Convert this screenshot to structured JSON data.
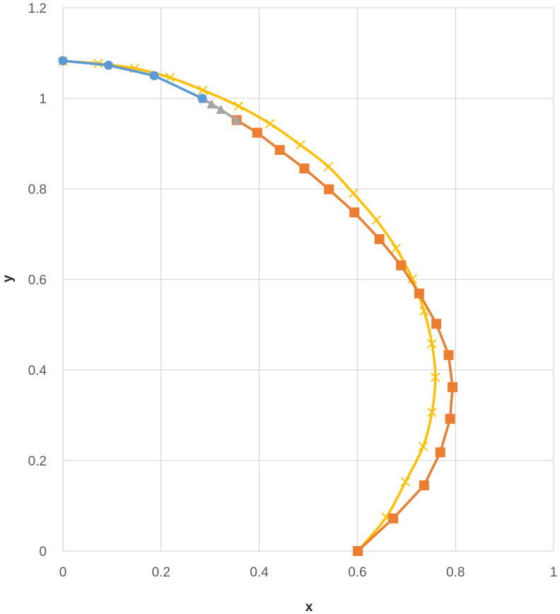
{
  "chart_data": {
    "type": "scatter",
    "title": "",
    "xlabel": "x",
    "ylabel": "y",
    "xlim": [
      0,
      1
    ],
    "ylim": [
      0,
      1.2
    ],
    "x_ticks": [
      "0",
      "0.2",
      "0.4",
      "0.6",
      "0.8",
      "1"
    ],
    "y_ticks": [
      "0",
      "0.2",
      "0.4",
      "0.6",
      "0.8",
      "1",
      "1.2"
    ],
    "x_tick_values": [
      0,
      0.2,
      0.4,
      0.6,
      0.8,
      1
    ],
    "y_tick_values": [
      0,
      0.2,
      0.4,
      0.6,
      0.8,
      1,
      1.2
    ],
    "grid": true,
    "legend": "none",
    "series": [
      {
        "color": "#FFC000",
        "marker": "x",
        "smooth": true,
        "points": [
          [
            0,
            1.082
          ],
          [
            0.072,
            1.077
          ],
          [
            0.146,
            1.066
          ],
          [
            0.218,
            1.046
          ],
          [
            0.285,
            1.018
          ],
          [
            0.358,
            0.983
          ],
          [
            0.422,
            0.944
          ],
          [
            0.484,
            0.897
          ],
          [
            0.541,
            0.849
          ],
          [
            0.592,
            0.79
          ],
          [
            0.639,
            0.731
          ],
          [
            0.679,
            0.669
          ],
          [
            0.712,
            0.601
          ],
          [
            0.736,
            0.53
          ],
          [
            0.752,
            0.458
          ],
          [
            0.759,
            0.384
          ],
          [
            0.752,
            0.306
          ],
          [
            0.734,
            0.231
          ],
          [
            0.698,
            0.153
          ],
          [
            0.659,
            0.075
          ],
          [
            0.601,
            0.0
          ]
        ]
      },
      {
        "color": "#ED7D31",
        "marker": "square",
        "smooth": false,
        "points": [
          [
            0.601,
            0.0
          ],
          [
            0.673,
            0.072
          ],
          [
            0.736,
            0.145
          ],
          [
            0.769,
            0.218
          ],
          [
            0.789,
            0.292
          ],
          [
            0.794,
            0.362
          ],
          [
            0.786,
            0.433
          ],
          [
            0.761,
            0.502
          ],
          [
            0.726,
            0.569
          ],
          [
            0.689,
            0.631
          ],
          [
            0.645,
            0.689
          ],
          [
            0.594,
            0.748
          ],
          [
            0.542,
            0.799
          ],
          [
            0.492,
            0.845
          ],
          [
            0.442,
            0.886
          ],
          [
            0.396,
            0.924
          ],
          [
            0.354,
            0.952
          ]
        ]
      },
      {
        "color": "#A5A5A5",
        "marker": "triangle",
        "smooth": false,
        "points": [
          [
            0.286,
            0.999
          ],
          [
            0.303,
            0.987
          ],
          [
            0.322,
            0.975
          ],
          [
            0.354,
            0.952
          ]
        ]
      },
      {
        "color": "#5B9BD5",
        "marker": "circle",
        "smooth": false,
        "points": [
          [
            0,
            1.083
          ],
          [
            0.093,
            1.073
          ],
          [
            0.186,
            1.05
          ],
          [
            0.284,
            1.0
          ]
        ]
      }
    ]
  }
}
